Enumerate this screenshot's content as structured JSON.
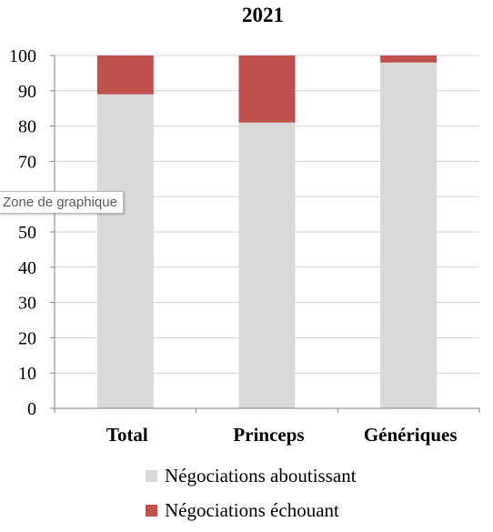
{
  "chart_data": {
    "type": "bar",
    "stacked": true,
    "title": "2021",
    "categories": [
      "Total",
      "Princeps",
      "Génériques"
    ],
    "series": [
      {
        "name": "Négociations aboutissant",
        "values": [
          89,
          81,
          98
        ],
        "color": "#d9d9d9"
      },
      {
        "name": "Négociations échouant",
        "values": [
          11,
          19,
          2
        ],
        "color": "#c0504d"
      }
    ],
    "ylim": [
      0,
      100
    ],
    "yticks": [
      0,
      10,
      20,
      30,
      40,
      50,
      60,
      70,
      80,
      90,
      100
    ],
    "grid": true,
    "legend_position": "bottom"
  },
  "tooltip": {
    "text": "Zone de graphique"
  }
}
